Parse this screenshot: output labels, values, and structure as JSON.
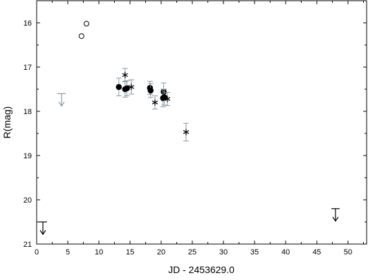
{
  "chart_data": {
    "type": "scatter",
    "title": "",
    "xlabel": "JD - 2453629.0",
    "ylabel": "R(mag)",
    "xlim": [
      0,
      53
    ],
    "ylim": [
      15.5,
      21
    ],
    "y_inverted": true,
    "x_ticks": [
      0,
      5,
      10,
      15,
      20,
      25,
      30,
      35,
      40,
      45,
      50
    ],
    "y_ticks": [
      16,
      17,
      18,
      19,
      20,
      21
    ],
    "grid": false,
    "legend": "none",
    "colors": {
      "black": "#000000",
      "gray": "#8a9aa4"
    },
    "series": [
      {
        "marker": "open-circle",
        "color": "#000000",
        "points": [
          {
            "x": 7.2,
            "y": 16.3
          },
          {
            "x": 8.0,
            "y": 16.02
          }
        ]
      },
      {
        "marker": "filled-circle",
        "color": "#000000",
        "points": [
          {
            "x": 13.2,
            "y": 17.45,
            "err": 0.2
          },
          {
            "x": 14.2,
            "y": 17.5,
            "err": 0.18
          },
          {
            "x": 14.5,
            "y": 17.48,
            "err": 0.17
          },
          {
            "x": 18.2,
            "y": 17.47,
            "err": 0.15
          },
          {
            "x": 18.3,
            "y": 17.53,
            "err": 0.16
          },
          {
            "x": 20.4,
            "y": 17.56,
            "err": 0.2
          },
          {
            "x": 20.3,
            "y": 17.7,
            "err": 0.2
          },
          {
            "x": 20.5,
            "y": 17.68,
            "err": 0.18
          }
        ]
      },
      {
        "marker": "asterisk",
        "color": "#000000",
        "points": [
          {
            "x": 14.2,
            "y": 17.18,
            "err": 0.15
          },
          {
            "x": 15.2,
            "y": 17.45,
            "err": 0.16
          },
          {
            "x": 19.0,
            "y": 17.8,
            "err": 0.15
          },
          {
            "x": 21.0,
            "y": 17.72,
            "err": 0.15
          },
          {
            "x": 24.0,
            "y": 18.47,
            "err": 0.2
          }
        ]
      },
      {
        "marker": "upper-limit",
        "color": "#8a9aa4",
        "points": [
          {
            "x": 4.0,
            "y": 17.6
          }
        ]
      },
      {
        "marker": "upper-limit",
        "color": "#000000",
        "points": [
          {
            "x": 1.0,
            "y": 20.5
          },
          {
            "x": 48.0,
            "y": 20.2
          }
        ]
      }
    ]
  }
}
